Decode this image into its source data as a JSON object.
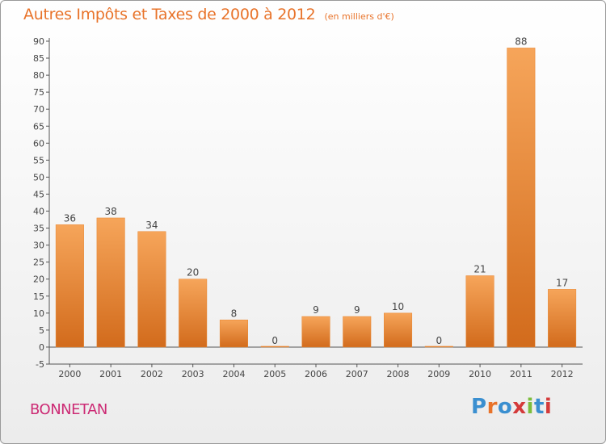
{
  "header": {
    "title": "Autres Impôts et Taxes de 2000 à 2012",
    "unit": "(en milliers d'€)"
  },
  "footer": {
    "commune": "BONNETAN",
    "logo": "Proxiti"
  },
  "colors": {
    "title": "#e8732a",
    "bar_top": "#f6a55a",
    "bar_bottom": "#d26b1c",
    "commune": "#cc2a74"
  },
  "chart_data": {
    "type": "bar",
    "title": "Autres Impôts et Taxes de 2000 à 2012",
    "subtitle": "(en milliers d'€)",
    "xlabel": "",
    "ylabel": "",
    "categories": [
      "2000",
      "2001",
      "2002",
      "2003",
      "2004",
      "2005",
      "2006",
      "2007",
      "2008",
      "2009",
      "2010",
      "2011",
      "2012"
    ],
    "values": [
      36,
      38,
      34,
      20,
      8,
      0,
      9,
      9,
      10,
      0,
      21,
      88,
      17
    ],
    "data_labels": [
      "36",
      "38",
      "34",
      "20",
      "8",
      "0",
      "9",
      "9",
      "10",
      "0",
      "21",
      "88",
      "17"
    ],
    "ylim": [
      -5,
      90
    ],
    "yticks": [
      -5,
      0,
      5,
      10,
      15,
      20,
      25,
      30,
      35,
      40,
      45,
      50,
      55,
      60,
      65,
      70,
      75,
      80,
      85,
      90
    ],
    "grid": false,
    "legend": "none"
  }
}
